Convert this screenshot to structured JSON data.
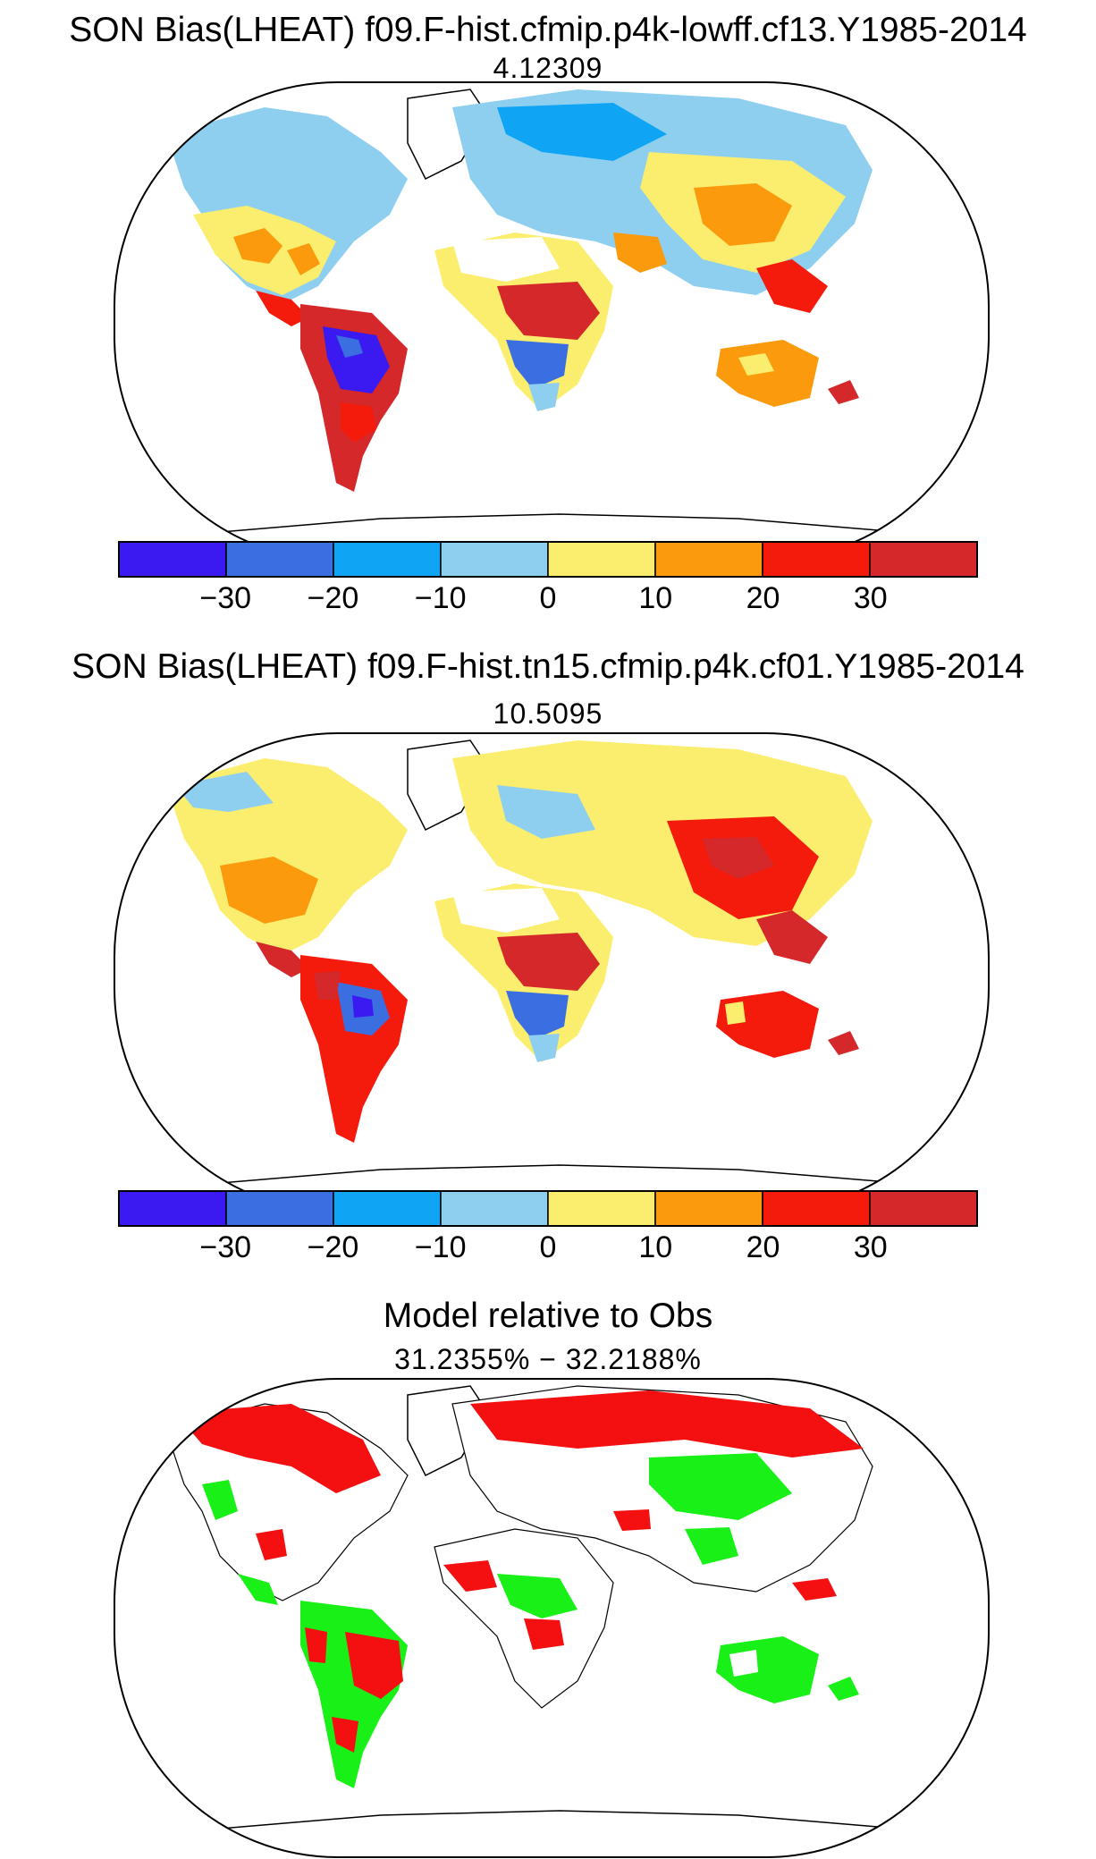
{
  "panels": [
    {
      "title": "SON Bias(LHEAT) f09.F-hist.cfmip.p4k-lowff.cf13.Y1985-2014",
      "subtitle": "4.12309",
      "colorbar": {
        "colors": [
          "#3a1af0",
          "#3b6ee0",
          "#10a4f4",
          "#8ecff0",
          "#fbee6e",
          "#fa9a0c",
          "#f41a0c",
          "#d4282a"
        ],
        "ticks": [
          "−30",
          "−20",
          "−10",
          "0",
          "10",
          "20",
          "30"
        ]
      }
    },
    {
      "title": "SON Bias(LHEAT) f09.F-hist.tn15.cfmip.p4k.cf01.Y1985-2014",
      "subtitle": "10.5095",
      "colorbar": {
        "colors": [
          "#3a1af0",
          "#3b6ee0",
          "#10a4f4",
          "#8ecff0",
          "#fbee6e",
          "#fa9a0c",
          "#f41a0c",
          "#d4282a"
        ],
        "ticks": [
          "−30",
          "−20",
          "−10",
          "0",
          "10",
          "20",
          "30"
        ]
      }
    },
    {
      "title": "Model relative to Obs",
      "subtitle": "31.2355% − 32.2188%",
      "colors": {
        "red": "#f41010",
        "green": "#18f018"
      }
    }
  ]
}
